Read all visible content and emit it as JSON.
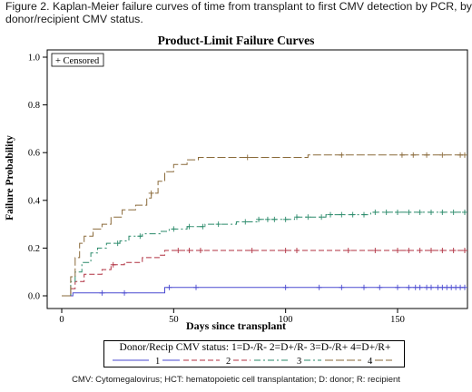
{
  "caption": "Figure 2. Kaplan-Meier failure curves of time from transplant to first CMV detection by PCR, by donor/recipient CMV status.",
  "footnote": "CMV: Cytomegalovirus; HCT: hematopoietic cell transplantation; D: donor; R: recipient",
  "chart_data": {
    "type": "line",
    "title": "Product-Limit Failure Curves",
    "xlabel": "Days since transplant",
    "ylabel": "Failure Probability",
    "xlim": [
      0,
      180
    ],
    "ylim": [
      0,
      1.0
    ],
    "xticks": [
      "0",
      "50",
      "100",
      "150"
    ],
    "yticks": [
      "0.0",
      "0.2",
      "0.4",
      "0.6",
      "0.8",
      "1.0"
    ],
    "censored_label": "+ Censored",
    "legend_title": "Donor/Recip CMV status: 1=D-/R- 2=D+/R- 3=D-/R+ 4=D+/R+",
    "legend_position": "bottom",
    "series": [
      {
        "name": "1",
        "color": "#4a4ad0",
        "dash": "none",
        "points": [
          [
            0,
            0
          ],
          [
            5,
            0
          ],
          [
            5,
            0.012
          ],
          [
            30,
            0.012
          ],
          [
            46,
            0.012
          ],
          [
            46,
            0.035
          ],
          [
            180,
            0.035
          ]
        ],
        "censored": [
          18,
          28,
          48,
          60,
          100,
          115,
          125,
          135,
          142,
          150,
          155,
          158,
          160,
          163,
          165,
          168,
          170,
          172,
          174,
          176,
          178,
          180
        ]
      },
      {
        "name": "2",
        "color": "#b03040",
        "dash": "6,3",
        "points": [
          [
            0,
            0
          ],
          [
            4,
            0
          ],
          [
            4,
            0.03
          ],
          [
            6,
            0.03
          ],
          [
            6,
            0.06
          ],
          [
            10,
            0.06
          ],
          [
            10,
            0.09
          ],
          [
            18,
            0.09
          ],
          [
            18,
            0.11
          ],
          [
            22,
            0.11
          ],
          [
            22,
            0.13
          ],
          [
            28,
            0.13
          ],
          [
            28,
            0.14
          ],
          [
            36,
            0.14
          ],
          [
            36,
            0.16
          ],
          [
            44,
            0.16
          ],
          [
            44,
            0.17
          ],
          [
            46,
            0.17
          ],
          [
            46,
            0.19
          ],
          [
            180,
            0.19
          ]
        ],
        "censored": [
          23,
          52,
          57,
          62,
          85,
          100,
          105,
          128,
          140,
          150,
          155,
          160,
          165,
          170,
          175,
          180
        ]
      },
      {
        "name": "3",
        "color": "#2a8a6a",
        "dash": "7,3,2,3",
        "points": [
          [
            0,
            0
          ],
          [
            4,
            0
          ],
          [
            4,
            0.06
          ],
          [
            6,
            0.06
          ],
          [
            6,
            0.1
          ],
          [
            9,
            0.1
          ],
          [
            9,
            0.14
          ],
          [
            13,
            0.14
          ],
          [
            13,
            0.18
          ],
          [
            16,
            0.18
          ],
          [
            16,
            0.2
          ],
          [
            20,
            0.2
          ],
          [
            20,
            0.22
          ],
          [
            26,
            0.22
          ],
          [
            26,
            0.23
          ],
          [
            30,
            0.23
          ],
          [
            30,
            0.25
          ],
          [
            36,
            0.25
          ],
          [
            36,
            0.26
          ],
          [
            44,
            0.26
          ],
          [
            44,
            0.27
          ],
          [
            48,
            0.27
          ],
          [
            48,
            0.28
          ],
          [
            56,
            0.28
          ],
          [
            56,
            0.29
          ],
          [
            64,
            0.29
          ],
          [
            64,
            0.3
          ],
          [
            78,
            0.3
          ],
          [
            78,
            0.31
          ],
          [
            88,
            0.31
          ],
          [
            88,
            0.32
          ],
          [
            104,
            0.32
          ],
          [
            104,
            0.33
          ],
          [
            118,
            0.33
          ],
          [
            118,
            0.34
          ],
          [
            138,
            0.34
          ],
          [
            138,
            0.35
          ],
          [
            180,
            0.35
          ]
        ],
        "censored": [
          25,
          35,
          50,
          57,
          63,
          70,
          82,
          88,
          92,
          95,
          100,
          105,
          110,
          116,
          120,
          125,
          130,
          135,
          140,
          145,
          150,
          155,
          160,
          165,
          170,
          175,
          180
        ]
      },
      {
        "name": "4",
        "color": "#8a6a3a",
        "dash": "9,3",
        "points": [
          [
            0,
            0
          ],
          [
            4,
            0
          ],
          [
            4,
            0.08
          ],
          [
            6,
            0.08
          ],
          [
            6,
            0.16
          ],
          [
            8,
            0.16
          ],
          [
            8,
            0.22
          ],
          [
            10,
            0.22
          ],
          [
            10,
            0.25
          ],
          [
            14,
            0.25
          ],
          [
            14,
            0.28
          ],
          [
            18,
            0.28
          ],
          [
            18,
            0.3
          ],
          [
            22,
            0.3
          ],
          [
            22,
            0.33
          ],
          [
            27,
            0.33
          ],
          [
            27,
            0.36
          ],
          [
            33,
            0.36
          ],
          [
            33,
            0.38
          ],
          [
            38,
            0.38
          ],
          [
            38,
            0.41
          ],
          [
            40,
            0.41
          ],
          [
            40,
            0.43
          ],
          [
            43,
            0.43
          ],
          [
            43,
            0.48
          ],
          [
            46,
            0.48
          ],
          [
            46,
            0.52
          ],
          [
            50,
            0.52
          ],
          [
            50,
            0.55
          ],
          [
            56,
            0.55
          ],
          [
            56,
            0.57
          ],
          [
            61,
            0.57
          ],
          [
            61,
            0.58
          ],
          [
            110,
            0.58
          ],
          [
            110,
            0.59
          ],
          [
            180,
            0.59
          ]
        ],
        "censored": [
          40,
          83,
          125,
          152,
          157,
          163,
          170,
          178,
          180
        ]
      }
    ]
  }
}
